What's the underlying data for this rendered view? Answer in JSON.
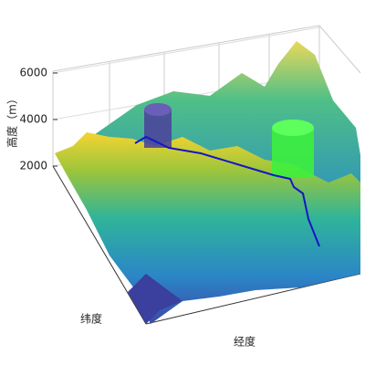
{
  "chart_data": {
    "type": "surface",
    "zlabel": "高度（m）",
    "xlabel": "经度",
    "ylabel": "纬度",
    "zlim": [
      2000,
      6000
    ],
    "zticks": [
      2000,
      4000,
      6000
    ],
    "grid": true
  }
}
